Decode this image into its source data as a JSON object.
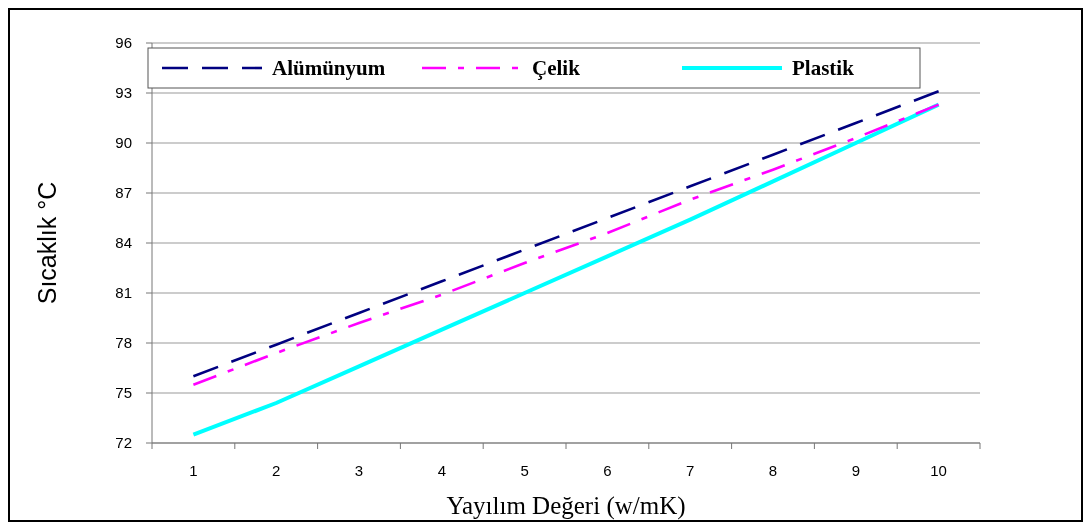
{
  "chart_data": {
    "type": "line",
    "xlabel": "Yayılım Değeri (w/mK)",
    "ylabel": "Sıcaklık °C",
    "categories": [
      "1",
      "2",
      "3",
      "4",
      "5",
      "6",
      "7",
      "8",
      "9",
      "10"
    ],
    "series": [
      {
        "name": "Alümünyum",
        "color": "#000080",
        "line_style": "dashed",
        "values": [
          76.0,
          77.9,
          79.8,
          81.7,
          83.6,
          85.5,
          87.4,
          89.3,
          91.2,
          93.1
        ]
      },
      {
        "name": "Çelik",
        "color": "#ff00ff",
        "line_style": "dashdot",
        "values": [
          75.5,
          77.4,
          79.2,
          80.9,
          82.8,
          84.6,
          86.6,
          88.4,
          90.3,
          92.3
        ]
      },
      {
        "name": "Plastik",
        "color": "#00ffff",
        "line_style": "solid",
        "values": [
          72.5,
          74.4,
          76.6,
          78.8,
          81.0,
          83.2,
          85.4,
          87.7,
          90.0,
          92.3
        ]
      }
    ],
    "ylim": [
      72,
      96
    ],
    "yticks": [
      72,
      75,
      78,
      81,
      84,
      87,
      90,
      93,
      96
    ],
    "grid": "y",
    "legend": "top",
    "marker": "none"
  }
}
